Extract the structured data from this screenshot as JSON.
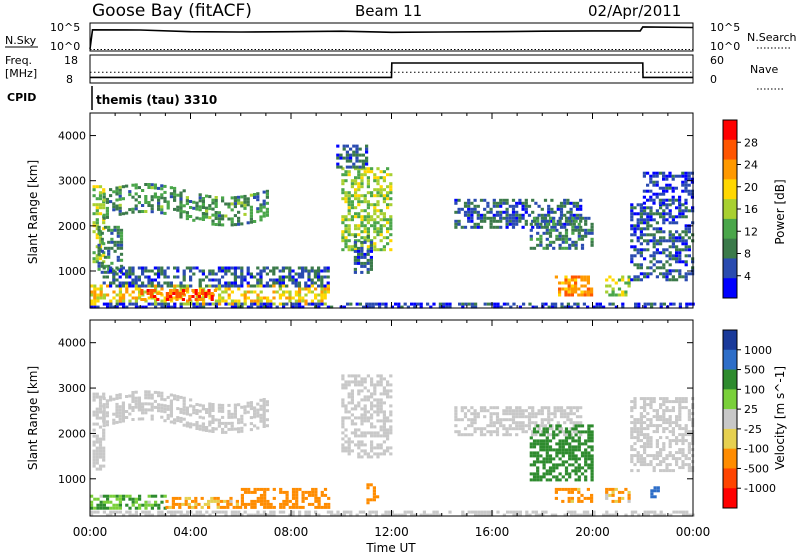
{
  "header": {
    "station": "Goose Bay (fitACF)",
    "beam": "Beam 11",
    "date": "02/Apr/2011"
  },
  "summary_panels": {
    "nsky": {
      "label": "N.Sky",
      "left_ticks": [
        "10^5",
        "10^0"
      ],
      "right_ticks": [
        "10^5",
        "10^0"
      ],
      "right_label": "N.Search"
    },
    "freq": {
      "label_line1": "Freq.",
      "label_line2": "[MHz]",
      "left_ticks": [
        "18",
        "8"
      ],
      "right_ticks": [
        "60",
        "0"
      ],
      "right_label": "Nave"
    },
    "cpid": {
      "label": "CPID",
      "value": "themis (tau) 3310"
    }
  },
  "colors": {
    "power_scale": [
      "#0000ff",
      "#2a4bb0",
      "#3b7a4a",
      "#4aa64a",
      "#a8d030",
      "#ffd700",
      "#ff9900",
      "#ff5500",
      "#ff0000"
    ],
    "velocity_scale": [
      "#1a3a9a",
      "#2e6ec8",
      "#2e8b2e",
      "#7ad03a",
      "#c8c8c8",
      "#e6d050",
      "#ff8c00",
      "#ff4400",
      "#ff0000"
    ],
    "ground_scatter": "#c8c8c8"
  },
  "chart_data": [
    {
      "type": "line",
      "panel": "N.Sky / N.Search",
      "x_unit": "hours UT",
      "series": [
        {
          "name": "N.Sky",
          "style": "solid",
          "x": [
            0,
            0.1,
            2,
            4,
            6,
            8,
            10,
            12,
            14,
            16,
            18,
            20,
            21.9,
            22,
            24
          ],
          "y": [
            0,
            10000,
            9000,
            4000,
            3500,
            4000,
            5000,
            3000,
            3500,
            4000,
            5000,
            6000,
            6000,
            40000,
            30000
          ]
        },
        {
          "name": "N.Search",
          "style": "dotted",
          "x": [
            0,
            24
          ],
          "y": [
            0,
            0
          ]
        }
      ],
      "ylim": [
        1,
        100000
      ],
      "log_scale": true
    },
    {
      "type": "line",
      "panel": "Freq. / Nave",
      "x_unit": "hours UT",
      "series": [
        {
          "name": "Freq. [MHz]",
          "style": "solid",
          "x": [
            0,
            12,
            12.01,
            22,
            22.01,
            24
          ],
          "y": [
            9.5,
            9.5,
            15.5,
            15.5,
            9.5,
            9.5
          ]
        },
        {
          "name": "Nave",
          "style": "dotted",
          "x": [
            0,
            24
          ],
          "y": [
            22,
            22
          ]
        }
      ],
      "ylim": [
        8,
        18
      ],
      "y2lim": [
        0,
        60
      ]
    },
    {
      "type": "heatmap",
      "title": "Power",
      "xlabel": "",
      "ylabel": "Slant Range [km]",
      "colorbar_label": "Power [dB]",
      "colorbar_ticks": [
        4,
        8,
        12,
        16,
        20,
        24,
        28
      ],
      "clim": [
        0,
        30
      ],
      "xlim": [
        0,
        24
      ],
      "ylim": [
        180,
        4500
      ],
      "yticks": [
        1000,
        2000,
        3000,
        4000
      ],
      "regions": [
        {
          "t0": 0.1,
          "t1": 0.5,
          "r0": 1200,
          "r1": 2900,
          "v": 14
        },
        {
          "t0": 0.5,
          "t1": 7.0,
          "r0": 2200,
          "r1": 2800,
          "v": 10,
          "curve": "arc"
        },
        {
          "t0": 0.3,
          "t1": 1.3,
          "r0": 1000,
          "r1": 2000,
          "v": 8
        },
        {
          "t0": 0.0,
          "t1": 9.5,
          "r0": 300,
          "r1": 700,
          "v": 18
        },
        {
          "t0": 2.0,
          "t1": 5.0,
          "r0": 350,
          "r1": 600,
          "v": 26
        },
        {
          "t0": 0.5,
          "t1": 9.5,
          "r0": 700,
          "r1": 1100,
          "v": 6
        },
        {
          "t0": 10.0,
          "t1": 12.0,
          "r0": 1500,
          "r1": 3300,
          "v": 14
        },
        {
          "t0": 9.8,
          "t1": 11.0,
          "r0": 3300,
          "r1": 3800,
          "v": 6
        },
        {
          "t0": 10.5,
          "t1": 11.2,
          "r0": 1000,
          "r1": 1800,
          "v": 6
        },
        {
          "t0": 14.5,
          "t1": 19.5,
          "r0": 2000,
          "r1": 2600,
          "v": 6
        },
        {
          "t0": 17.5,
          "t1": 20.0,
          "r0": 1500,
          "r1": 2200,
          "v": 8
        },
        {
          "t0": 18.5,
          "t1": 20.0,
          "r0": 500,
          "r1": 900,
          "v": 22
        },
        {
          "t0": 20.5,
          "t1": 21.5,
          "r0": 500,
          "r1": 900,
          "v": 14
        },
        {
          "t0": 21.5,
          "t1": 24.0,
          "r0": 800,
          "r1": 2500,
          "v": 6
        },
        {
          "t0": 22.0,
          "t1": 24.0,
          "r0": 2500,
          "r1": 3200,
          "v": 4
        },
        {
          "t0": 0.0,
          "t1": 24.0,
          "r0": 180,
          "r1": 300,
          "v": 4
        }
      ]
    },
    {
      "type": "heatmap",
      "title": "Velocity",
      "xlabel": "Time UT",
      "ylabel": "Slant Range [km]",
      "colorbar_label": "Velocity [m s^-1]",
      "colorbar_ticks": [
        1000,
        500,
        100,
        25,
        -25,
        -100,
        -500,
        -1000
      ],
      "xlim": [
        0,
        24
      ],
      "ylim": [
        180,
        4500
      ],
      "xticks": [
        "00:00",
        "04:00",
        "08:00",
        "12:00",
        "16:00",
        "20:00",
        "00:00"
      ],
      "yticks": [
        1000,
        2000,
        3000,
        4000
      ],
      "regions": [
        {
          "t0": 0.1,
          "t1": 0.5,
          "r0": 1200,
          "r1": 2900,
          "v": 25,
          "ground": true
        },
        {
          "t0": 0.5,
          "t1": 7.0,
          "r0": 2200,
          "r1": 2800,
          "v": 0,
          "ground": true,
          "curve": "arc"
        },
        {
          "t0": 0.0,
          "t1": 3.0,
          "r0": 350,
          "r1": 650,
          "v": 100
        },
        {
          "t0": 3.0,
          "t1": 6.0,
          "r0": 350,
          "r1": 600,
          "v": -100
        },
        {
          "t0": 6.0,
          "t1": 9.5,
          "r0": 350,
          "r1": 800,
          "v": -200
        },
        {
          "t0": 10.0,
          "t1": 12.0,
          "r0": 1500,
          "r1": 3300,
          "v": 0,
          "ground": true
        },
        {
          "t0": 11.0,
          "t1": 11.5,
          "r0": 500,
          "r1": 900,
          "v": -300
        },
        {
          "t0": 14.5,
          "t1": 19.5,
          "r0": 2000,
          "r1": 2600,
          "v": 0,
          "ground": true
        },
        {
          "t0": 17.5,
          "t1": 20.0,
          "r0": 1000,
          "r1": 2200,
          "v": 200
        },
        {
          "t0": 18.5,
          "t1": 20.0,
          "r0": 500,
          "r1": 800,
          "v": -150
        },
        {
          "t0": 20.5,
          "t1": 21.5,
          "r0": 500,
          "r1": 800,
          "v": -80
        },
        {
          "t0": 21.5,
          "t1": 24.0,
          "r0": 1200,
          "r1": 2800,
          "v": 0,
          "ground": true
        },
        {
          "t0": 22.3,
          "t1": 22.6,
          "r0": 600,
          "r1": 900,
          "v": 600
        },
        {
          "t0": 0.0,
          "t1": 24.0,
          "r0": 180,
          "r1": 300,
          "v": 0,
          "ground": true
        }
      ]
    }
  ]
}
